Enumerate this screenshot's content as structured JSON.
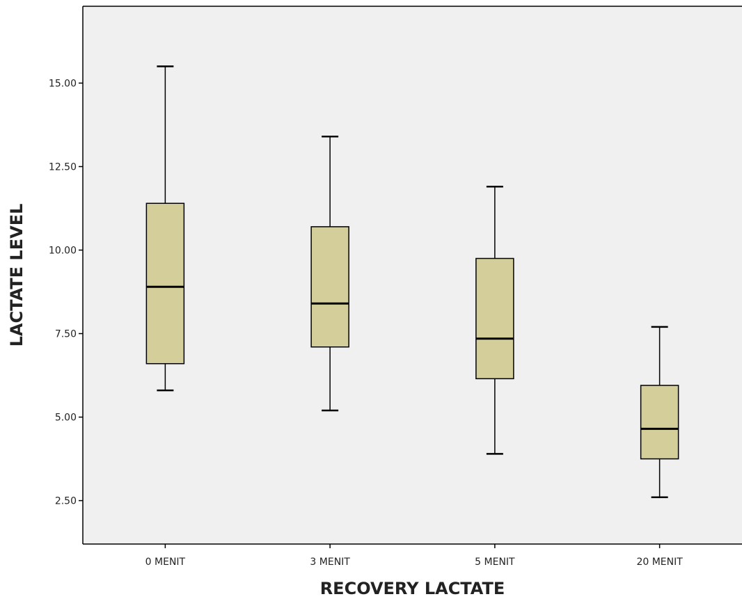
{
  "chart_data": {
    "type": "boxplot",
    "title": "",
    "xlabel": "RECOVERY LACTATE",
    "ylabel": "LACTATE LEVEL",
    "categories": [
      "0 MENIT",
      "3 MENIT",
      "5 MENIT",
      "20 MENIT"
    ],
    "boxes": [
      {
        "whisker_low": 5.8,
        "q1": 6.6,
        "median": 8.9,
        "q3": 11.4,
        "whisker_high": 15.5
      },
      {
        "whisker_low": 5.2,
        "q1": 7.1,
        "median": 8.4,
        "q3": 10.7,
        "whisker_high": 13.4
      },
      {
        "whisker_low": 3.9,
        "q1": 6.15,
        "median": 7.35,
        "q3": 9.75,
        "whisker_high": 11.9
      },
      {
        "whisker_low": 2.6,
        "q1": 3.75,
        "median": 4.65,
        "q3": 5.95,
        "whisker_high": 7.7
      }
    ],
    "yticks": [
      "2.50",
      "5.00",
      "7.50",
      "10.00",
      "12.50",
      "15.00"
    ],
    "ylim": [
      1.2,
      17.3
    ],
    "grid": false,
    "colors": {
      "plot_background": "#f0f0f0",
      "box_fill": "#d3ce9a",
      "stroke": "#000000"
    }
  }
}
